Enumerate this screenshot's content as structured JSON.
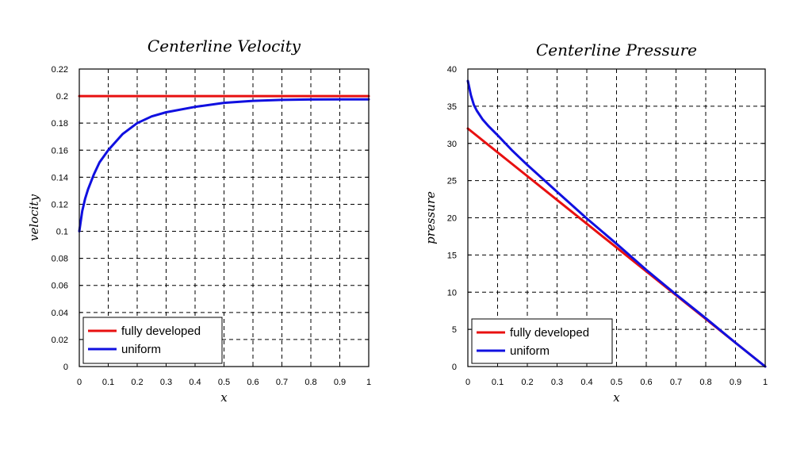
{
  "chart_data": [
    {
      "type": "line",
      "title": "Centerline Velocity",
      "xlabel": "x",
      "ylabel": "velocity",
      "xlim": [
        0,
        1
      ],
      "ylim": [
        0,
        0.22
      ],
      "xticks": [
        "0",
        "0.1",
        "0.2",
        "0.3",
        "0.4",
        "0.5",
        "0.6",
        "0.7",
        "0.8",
        "0.9",
        "1"
      ],
      "yticks": [
        "0",
        "0.02",
        "0.04",
        "0.06",
        "0.08",
        "0.1",
        "0.12",
        "0.14",
        "0.16",
        "0.18",
        "0.2",
        "0.22"
      ],
      "grid": true,
      "legend_position": "bottom-left",
      "series": [
        {
          "name": "fully developed",
          "color": "#e81010",
          "x": [
            0,
            1
          ],
          "y": [
            0.2,
            0.2
          ]
        },
        {
          "name": "uniform",
          "color": "#1010e0",
          "x": [
            0,
            0.01,
            0.02,
            0.03,
            0.05,
            0.07,
            0.1,
            0.15,
            0.2,
            0.25,
            0.3,
            0.4,
            0.5,
            0.6,
            0.7,
            0.8,
            0.9,
            1.0
          ],
          "y": [
            0.1,
            0.115,
            0.124,
            0.131,
            0.142,
            0.151,
            0.16,
            0.172,
            0.18,
            0.185,
            0.188,
            0.192,
            0.195,
            0.1965,
            0.1972,
            0.1975,
            0.1976,
            0.1976
          ]
        }
      ]
    },
    {
      "type": "line",
      "title": "Centerline Pressure",
      "xlabel": "x",
      "ylabel": "pressure",
      "xlim": [
        0,
        1
      ],
      "ylim": [
        0,
        40
      ],
      "xticks": [
        "0",
        "0.1",
        "0.2",
        "0.3",
        "0.4",
        "0.5",
        "0.6",
        "0.7",
        "0.8",
        "0.9",
        "1"
      ],
      "yticks": [
        "0",
        "5",
        "10",
        "15",
        "20",
        "25",
        "30",
        "35",
        "40"
      ],
      "grid": true,
      "legend_position": "bottom-left",
      "series": [
        {
          "name": "fully developed",
          "color": "#e81010",
          "x": [
            0,
            1
          ],
          "y": [
            32,
            0
          ]
        },
        {
          "name": "uniform",
          "color": "#1010e0",
          "x": [
            0,
            0.01,
            0.02,
            0.03,
            0.05,
            0.07,
            0.1,
            0.15,
            0.2,
            0.3,
            0.4,
            0.5,
            0.6,
            0.7,
            0.8,
            0.9,
            1.0
          ],
          "y": [
            38.4,
            36.5,
            35.2,
            34.4,
            33.2,
            32.3,
            31.1,
            29.0,
            27.1,
            23.5,
            19.9,
            16.5,
            13.0,
            9.7,
            6.5,
            3.2,
            0
          ]
        }
      ]
    }
  ]
}
